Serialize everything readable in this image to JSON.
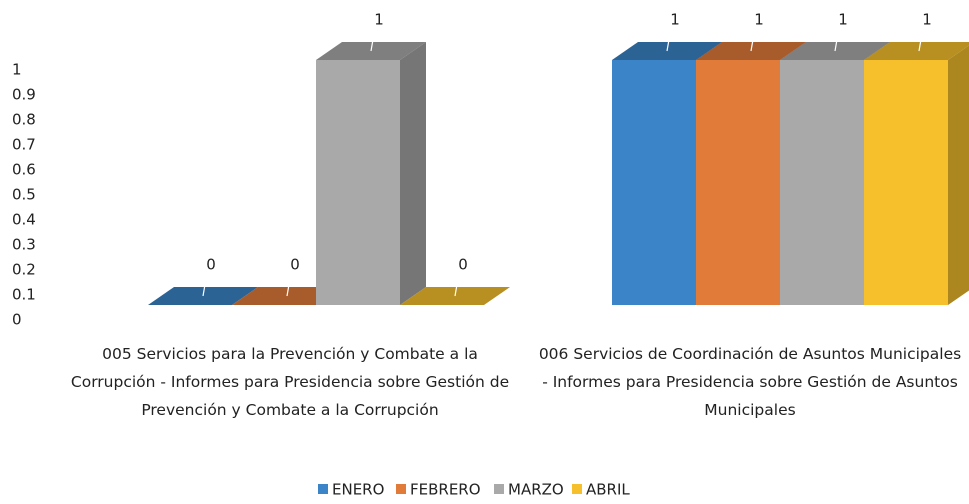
{
  "chart_data": {
    "type": "bar3d",
    "categories": [
      "005 Servicios para la Prevención y  Combate a la Corrupción - Informes para Presidencia sobre Gestión de Prevención y Combate a la Corrupción",
      "006 Servicios de Coordinación de Asuntos Municipales - Informes para Presidencia sobre Gestión de Asuntos Municipales"
    ],
    "series": [
      {
        "name": "ENERO",
        "color": "#3a84c7",
        "values": [
          0,
          1
        ]
      },
      {
        "name": "FEBRERO",
        "color": "#e07b39",
        "values": [
          0,
          1
        ]
      },
      {
        "name": "MARZO",
        "color": "#a9a9a9",
        "values": [
          1,
          1
        ]
      },
      {
        "name": "ABRIL",
        "color": "#f5c02c",
        "values": [
          0,
          1
        ]
      }
    ],
    "ylim": [
      0,
      1
    ],
    "yticks": [
      0,
      0.1,
      0.2,
      0.3,
      0.4,
      0.5,
      0.6,
      0.7,
      0.8,
      0.9,
      1
    ],
    "legend": "bottom",
    "grid": false
  }
}
